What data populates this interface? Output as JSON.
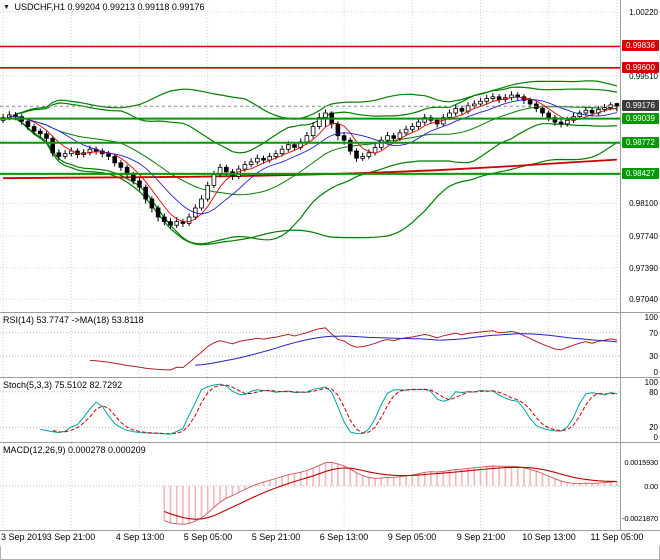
{
  "title": {
    "marker_icon": "▼",
    "symbol_period": "USDCHF,H1",
    "ohlc": "0.99204 0.99213 0.99118 0.99176"
  },
  "colors": {
    "grid": "#d4d4d4",
    "level_red": "#d60000",
    "level_green": "#009900",
    "band_green": "#008000",
    "current_badge": "#3c3c3c"
  },
  "x_axis": {
    "labels": [
      "3 Sep 2019",
      "3 Sep 21:00",
      "4 Sep 13:00",
      "5 Sep 05:00",
      "5 Sep 21:00",
      "6 Sep 13:00",
      "9 Sep 05:00",
      "9 Sep 21:00",
      "10 Sep 13:00",
      "11 Sep 05:00"
    ]
  },
  "chart_data": [
    {
      "id": "main",
      "type": "candlestick",
      "title": "USDCHF,H1",
      "ylim": [
        0.969,
        1.0035
      ],
      "x_tick_indices": [
        0,
        11,
        22,
        33,
        44,
        55,
        66,
        77,
        88,
        99
      ],
      "x_tick_labels": [
        "3 Sep 2019",
        "3 Sep 21:00",
        "4 Sep 13:00",
        "5 Sep 05:00",
        "5 Sep 21:00",
        "6 Sep 13:00",
        "9 Sep 05:00",
        "9 Sep 21:00",
        "10 Sep 13:00",
        "11 Sep 05:00"
      ],
      "y_grid_values": [
        1.0022,
        0.99865,
        0.9951,
        0.99155,
        0.988,
        0.98445,
        0.981,
        0.9774,
        0.9739,
        0.9704
      ],
      "y_axis_plain": [
        "1.00220",
        "0.99510",
        "0.98100",
        "0.97740",
        "0.97390",
        "0.97040"
      ],
      "price_badges": [
        {
          "value": 0.99836,
          "label": "0.99836",
          "color": "#d60000"
        },
        {
          "value": 0.996,
          "label": "0.99600",
          "color": "#d60000"
        },
        {
          "value": 0.99039,
          "label": "0.99039",
          "color": "#009900"
        },
        {
          "value": 0.98772,
          "label": "0.98772",
          "color": "#009900"
        },
        {
          "value": 0.98427,
          "label": "0.98427",
          "color": "#009900"
        }
      ],
      "level_lines": [
        {
          "value": 0.99836,
          "color": "#d60000",
          "width": 1.6
        },
        {
          "value": 0.996,
          "color": "#d60000",
          "width": 1.6
        },
        {
          "value": 0.99039,
          "color": "#009900",
          "width": 2
        },
        {
          "value": 0.98772,
          "color": "#009900",
          "width": 2
        },
        {
          "value": 0.98427,
          "color": "#009900",
          "width": 2
        }
      ],
      "current_price": {
        "value": 0.99176,
        "label": "0.99176",
        "color": "#3c3c3c"
      },
      "bollinger": [
        {
          "period": 20,
          "deviation": 2.0,
          "color": "#008000",
          "mid": true
        },
        {
          "period": 40,
          "deviation": 2.2,
          "color": "#008000",
          "mid": false
        }
      ],
      "moving_averages": [
        {
          "period": 5,
          "color": "#e00000"
        },
        {
          "period": 10,
          "color": "#2020d0"
        }
      ],
      "slow_ma": [
        [
          0,
          0.9838
        ],
        [
          10,
          0.98385
        ],
        [
          20,
          0.9839
        ],
        [
          30,
          0.98395
        ],
        [
          40,
          0.98405
        ],
        [
          50,
          0.9842
        ],
        [
          60,
          0.9844
        ],
        [
          70,
          0.98468
        ],
        [
          80,
          0.98505
        ],
        [
          90,
          0.98548
        ],
        [
          99,
          0.98585
        ]
      ],
      "candles": [
        [
          0.9902,
          0.9909,
          0.9899,
          0.9905
        ],
        [
          0.9905,
          0.9912,
          0.9902,
          0.9908
        ],
        [
          0.9908,
          0.9911,
          0.9902,
          0.9906
        ],
        [
          0.9906,
          0.9909,
          0.9897,
          0.9901
        ],
        [
          0.9901,
          0.9904,
          0.9891,
          0.9895
        ],
        [
          0.9895,
          0.9898,
          0.9886,
          0.989
        ],
        [
          0.989,
          0.9893,
          0.9883,
          0.9887
        ],
        [
          0.9887,
          0.989,
          0.9878,
          0.9882
        ],
        [
          0.9882,
          0.9885,
          0.9862,
          0.9866
        ],
        [
          0.9866,
          0.987,
          0.9858,
          0.9862
        ],
        [
          0.9862,
          0.9869,
          0.9859,
          0.9865
        ],
        [
          0.9865,
          0.9872,
          0.9862,
          0.9868
        ],
        [
          0.9868,
          0.9871,
          0.986,
          0.9864
        ],
        [
          0.9864,
          0.987,
          0.9861,
          0.9866
        ],
        [
          0.9866,
          0.9874,
          0.9863,
          0.987
        ],
        [
          0.987,
          0.9873,
          0.9864,
          0.9868
        ],
        [
          0.9868,
          0.9871,
          0.9861,
          0.9865
        ],
        [
          0.9865,
          0.9868,
          0.9858,
          0.9862
        ],
        [
          0.9862,
          0.9865,
          0.9851,
          0.9855
        ],
        [
          0.9855,
          0.9858,
          0.9846,
          0.985
        ],
        [
          0.985,
          0.9853,
          0.9838,
          0.9842
        ],
        [
          0.9842,
          0.9845,
          0.9831,
          0.9835
        ],
        [
          0.9835,
          0.9839,
          0.9824,
          0.9828
        ],
        [
          0.9828,
          0.9831,
          0.981,
          0.9815
        ],
        [
          0.9815,
          0.9818,
          0.98,
          0.9805
        ],
        [
          0.9805,
          0.9808,
          0.979,
          0.9795
        ],
        [
          0.9795,
          0.9799,
          0.9786,
          0.979
        ],
        [
          0.979,
          0.9794,
          0.9782,
          0.9786
        ],
        [
          0.9786,
          0.9795,
          0.9783,
          0.979
        ],
        [
          0.979,
          0.9793,
          0.9784,
          0.9788
        ],
        [
          0.9788,
          0.9799,
          0.9785,
          0.9795
        ],
        [
          0.9795,
          0.9809,
          0.9792,
          0.9805
        ],
        [
          0.9805,
          0.9819,
          0.9802,
          0.9815
        ],
        [
          0.9815,
          0.9834,
          0.9812,
          0.983
        ],
        [
          0.983,
          0.9846,
          0.9827,
          0.9842
        ],
        [
          0.9842,
          0.9854,
          0.9839,
          0.985
        ],
        [
          0.985,
          0.9853,
          0.9841,
          0.9845
        ],
        [
          0.9845,
          0.9848,
          0.9836,
          0.984
        ],
        [
          0.984,
          0.9852,
          0.9837,
          0.9848
        ],
        [
          0.9848,
          0.9857,
          0.9845,
          0.9853
        ],
        [
          0.9853,
          0.986,
          0.985,
          0.9856
        ],
        [
          0.9856,
          0.9864,
          0.9853,
          0.986
        ],
        [
          0.986,
          0.9863,
          0.9854,
          0.9858
        ],
        [
          0.9858,
          0.9866,
          0.9855,
          0.9862
        ],
        [
          0.9862,
          0.9869,
          0.9859,
          0.9865
        ],
        [
          0.9865,
          0.9874,
          0.9862,
          0.987
        ],
        [
          0.987,
          0.9879,
          0.9867,
          0.9875
        ],
        [
          0.9875,
          0.9878,
          0.9868,
          0.9872
        ],
        [
          0.9872,
          0.9882,
          0.9869,
          0.9878
        ],
        [
          0.9878,
          0.9889,
          0.9875,
          0.9885
        ],
        [
          0.9885,
          0.99,
          0.9882,
          0.9895
        ],
        [
          0.9895,
          0.991,
          0.9892,
          0.9905
        ],
        [
          0.9905,
          0.9914,
          0.9895,
          0.991
        ],
        [
          0.991,
          0.9912,
          0.9893,
          0.9898
        ],
        [
          0.9898,
          0.9901,
          0.988,
          0.9885
        ],
        [
          0.9885,
          0.9889,
          0.9875,
          0.988
        ],
        [
          0.988,
          0.9883,
          0.9864,
          0.9868
        ],
        [
          0.9868,
          0.9871,
          0.9856,
          0.986
        ],
        [
          0.986,
          0.9866,
          0.9857,
          0.9862
        ],
        [
          0.9862,
          0.987,
          0.9859,
          0.9866
        ],
        [
          0.9866,
          0.9876,
          0.9863,
          0.9872
        ],
        [
          0.9872,
          0.9884,
          0.9869,
          0.988
        ],
        [
          0.988,
          0.9889,
          0.9877,
          0.9885
        ],
        [
          0.9885,
          0.9888,
          0.9878,
          0.9882
        ],
        [
          0.9882,
          0.9892,
          0.9879,
          0.9888
        ],
        [
          0.9888,
          0.9896,
          0.9885,
          0.9892
        ],
        [
          0.9892,
          0.9899,
          0.9889,
          0.9895
        ],
        [
          0.9895,
          0.9904,
          0.9892,
          0.99
        ],
        [
          0.99,
          0.9909,
          0.9897,
          0.9905
        ],
        [
          0.9905,
          0.9908,
          0.9898,
          0.9902
        ],
        [
          0.9902,
          0.9905,
          0.9894,
          0.9898
        ],
        [
          0.9898,
          0.9909,
          0.9895,
          0.9905
        ],
        [
          0.9905,
          0.9914,
          0.9902,
          0.991
        ],
        [
          0.991,
          0.9919,
          0.9907,
          0.9915
        ],
        [
          0.9915,
          0.9918,
          0.9908,
          0.9912
        ],
        [
          0.9912,
          0.9922,
          0.9909,
          0.9918
        ],
        [
          0.9918,
          0.9924,
          0.9915,
          0.992
        ],
        [
          0.992,
          0.9927,
          0.9917,
          0.9923
        ],
        [
          0.9923,
          0.993,
          0.992,
          0.9926
        ],
        [
          0.9926,
          0.9932,
          0.9923,
          0.9928
        ],
        [
          0.9928,
          0.9931,
          0.9921,
          0.9925
        ],
        [
          0.9925,
          0.9931,
          0.9922,
          0.9927
        ],
        [
          0.9927,
          0.9934,
          0.9924,
          0.993
        ],
        [
          0.993,
          0.9933,
          0.9924,
          0.9928
        ],
        [
          0.9928,
          0.9931,
          0.992,
          0.9924
        ],
        [
          0.9924,
          0.9927,
          0.9916,
          0.992
        ],
        [
          0.992,
          0.9923,
          0.9911,
          0.9915
        ],
        [
          0.9915,
          0.9918,
          0.9906,
          0.991
        ],
        [
          0.991,
          0.9913,
          0.9901,
          0.9905
        ],
        [
          0.9905,
          0.9908,
          0.9896,
          0.99
        ],
        [
          0.99,
          0.9903,
          0.9894,
          0.9898
        ],
        [
          0.9898,
          0.9906,
          0.9895,
          0.9902
        ],
        [
          0.9902,
          0.991,
          0.9899,
          0.9906
        ],
        [
          0.9906,
          0.9913,
          0.9903,
          0.991
        ],
        [
          0.991,
          0.9917,
          0.9907,
          0.9913
        ],
        [
          0.9913,
          0.9916,
          0.9906,
          0.991
        ],
        [
          0.991,
          0.9918,
          0.9907,
          0.9914
        ],
        [
          0.9914,
          0.992,
          0.9911,
          0.9916
        ],
        [
          0.9916,
          0.9922,
          0.9913,
          0.9919
        ],
        [
          0.99204,
          0.99213,
          0.99118,
          0.99176
        ]
      ]
    },
    {
      "id": "rsi",
      "type": "line",
      "label": "RSI(14) 53.7747 ->MA(18) 53.8118",
      "period": 14,
      "ma_period": 18,
      "last": 53.7747,
      "ma_last": 53.8118,
      "ylim": [
        0,
        100
      ],
      "levels": [
        70,
        30
      ],
      "axis_labels": [
        100,
        70,
        30,
        0
      ],
      "colors": {
        "main": "#b22222",
        "ma": "#2020cc"
      }
    },
    {
      "id": "stoch",
      "type": "line",
      "label": "Stoch(5,3,3) 75.5102 82.7292",
      "params": [
        5,
        3,
        3
      ],
      "last_k": 75.5102,
      "last_d": 82.7292,
      "ylim": [
        0,
        100
      ],
      "levels": [
        80,
        20
      ],
      "axis_labels": [
        100,
        80,
        20,
        0
      ],
      "colors": {
        "k": "#00a5a5",
        "d": "#cc0000"
      }
    },
    {
      "id": "macd",
      "type": "histogram+line",
      "label": "MACD(12,26,9) 0.000278 0.000209",
      "params": [
        12,
        26,
        9
      ],
      "last_main": 0.000278,
      "last_signal": 0.000209,
      "axis_labels": [
        {
          "v": 0.001593,
          "t": "0.0015930"
        },
        {
          "v": 0,
          "t": "0.00"
        },
        {
          "v": -0.002187,
          "t": "-0.0021870"
        }
      ],
      "colors": {
        "hist": "#f2b6b6",
        "main": "#cc5555",
        "signal": "#c00000"
      }
    }
  ]
}
